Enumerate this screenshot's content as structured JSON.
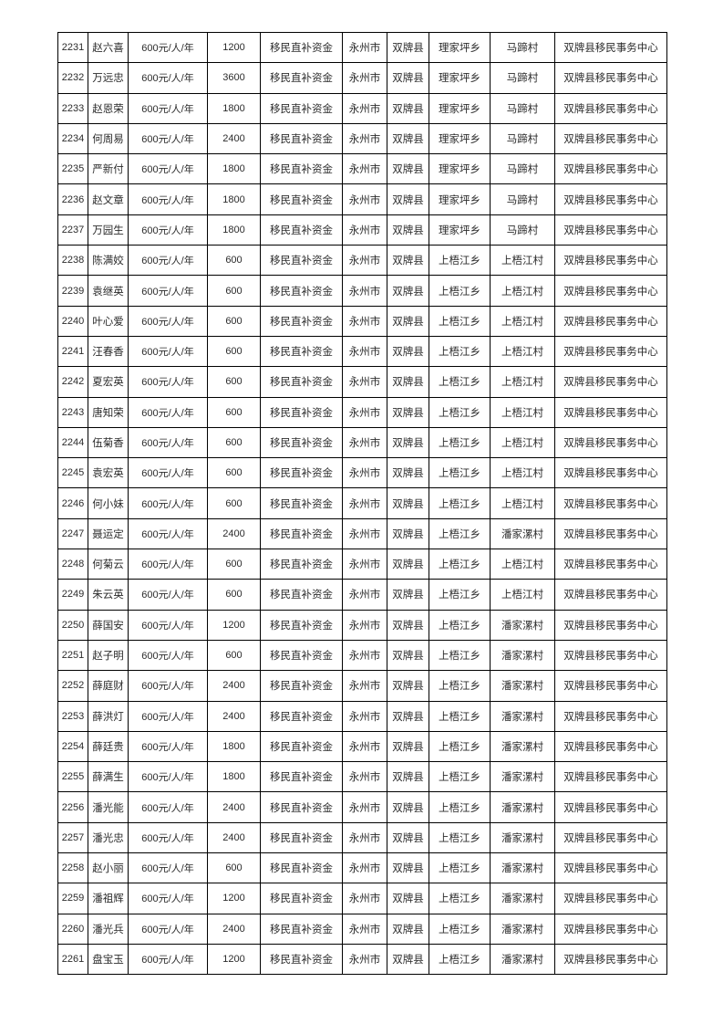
{
  "document": {
    "type": "subsidy-roster-table",
    "text_color": "#2b2b2b",
    "border_color": "#000000",
    "background_color": "#ffffff"
  },
  "table": {
    "column_semantics": [
      "serial-number",
      "person-name",
      "subsidy-standard",
      "subsidy-amount",
      "fund-type",
      "city",
      "county",
      "township",
      "village",
      "paying-agency"
    ],
    "rows": [
      [
        "2231",
        "赵六喜",
        "600元/人/年",
        "1200",
        "移民直补资金",
        "永州市",
        "双牌县",
        "理家坪乡",
        "马蹄村",
        "双牌县移民事务中心"
      ],
      [
        "2232",
        "万远忠",
        "600元/人/年",
        "3600",
        "移民直补资金",
        "永州市",
        "双牌县",
        "理家坪乡",
        "马蹄村",
        "双牌县移民事务中心"
      ],
      [
        "2233",
        "赵恩荣",
        "600元/人/年",
        "1800",
        "移民直补资金",
        "永州市",
        "双牌县",
        "理家坪乡",
        "马蹄村",
        "双牌县移民事务中心"
      ],
      [
        "2234",
        "何周易",
        "600元/人/年",
        "2400",
        "移民直补资金",
        "永州市",
        "双牌县",
        "理家坪乡",
        "马蹄村",
        "双牌县移民事务中心"
      ],
      [
        "2235",
        "严新付",
        "600元/人/年",
        "1800",
        "移民直补资金",
        "永州市",
        "双牌县",
        "理家坪乡",
        "马蹄村",
        "双牌县移民事务中心"
      ],
      [
        "2236",
        "赵文章",
        "600元/人/年",
        "1800",
        "移民直补资金",
        "永州市",
        "双牌县",
        "理家坪乡",
        "马蹄村",
        "双牌县移民事务中心"
      ],
      [
        "2237",
        "万园生",
        "600元/人/年",
        "1800",
        "移民直补资金",
        "永州市",
        "双牌县",
        "理家坪乡",
        "马蹄村",
        "双牌县移民事务中心"
      ],
      [
        "2238",
        "陈满姣",
        "600元/人/年",
        "600",
        "移民直补资金",
        "永州市",
        "双牌县",
        "上梧江乡",
        "上梧江村",
        "双牌县移民事务中心"
      ],
      [
        "2239",
        "袁继英",
        "600元/人/年",
        "600",
        "移民直补资金",
        "永州市",
        "双牌县",
        "上梧江乡",
        "上梧江村",
        "双牌县移民事务中心"
      ],
      [
        "2240",
        "叶心爱",
        "600元/人/年",
        "600",
        "移民直补资金",
        "永州市",
        "双牌县",
        "上梧江乡",
        "上梧江村",
        "双牌县移民事务中心"
      ],
      [
        "2241",
        "汪春香",
        "600元/人/年",
        "600",
        "移民直补资金",
        "永州市",
        "双牌县",
        "上梧江乡",
        "上梧江村",
        "双牌县移民事务中心"
      ],
      [
        "2242",
        "夏宏英",
        "600元/人/年",
        "600",
        "移民直补资金",
        "永州市",
        "双牌县",
        "上梧江乡",
        "上梧江村",
        "双牌县移民事务中心"
      ],
      [
        "2243",
        "唐知荣",
        "600元/人/年",
        "600",
        "移民直补资金",
        "永州市",
        "双牌县",
        "上梧江乡",
        "上梧江村",
        "双牌县移民事务中心"
      ],
      [
        "2244",
        "伍菊香",
        "600元/人/年",
        "600",
        "移民直补资金",
        "永州市",
        "双牌县",
        "上梧江乡",
        "上梧江村",
        "双牌县移民事务中心"
      ],
      [
        "2245",
        "袁宏英",
        "600元/人/年",
        "600",
        "移民直补资金",
        "永州市",
        "双牌县",
        "上梧江乡",
        "上梧江村",
        "双牌县移民事务中心"
      ],
      [
        "2246",
        "何小妹",
        "600元/人/年",
        "600",
        "移民直补资金",
        "永州市",
        "双牌县",
        "上梧江乡",
        "上梧江村",
        "双牌县移民事务中心"
      ],
      [
        "2247",
        "聂运定",
        "600元/人/年",
        "2400",
        "移民直补资金",
        "永州市",
        "双牌县",
        "上梧江乡",
        "潘家漯村",
        "双牌县移民事务中心"
      ],
      [
        "2248",
        "何菊云",
        "600元/人/年",
        "600",
        "移民直补资金",
        "永州市",
        "双牌县",
        "上梧江乡",
        "上梧江村",
        "双牌县移民事务中心"
      ],
      [
        "2249",
        "朱云英",
        "600元/人/年",
        "600",
        "移民直补资金",
        "永州市",
        "双牌县",
        "上梧江乡",
        "上梧江村",
        "双牌县移民事务中心"
      ],
      [
        "2250",
        "薛国安",
        "600元/人/年",
        "1200",
        "移民直补资金",
        "永州市",
        "双牌县",
        "上梧江乡",
        "潘家漯村",
        "双牌县移民事务中心"
      ],
      [
        "2251",
        "赵子明",
        "600元/人/年",
        "600",
        "移民直补资金",
        "永州市",
        "双牌县",
        "上梧江乡",
        "潘家漯村",
        "双牌县移民事务中心"
      ],
      [
        "2252",
        "薛庭财",
        "600元/人/年",
        "2400",
        "移民直补资金",
        "永州市",
        "双牌县",
        "上梧江乡",
        "潘家漯村",
        "双牌县移民事务中心"
      ],
      [
        "2253",
        "薛洪灯",
        "600元/人/年",
        "2400",
        "移民直补资金",
        "永州市",
        "双牌县",
        "上梧江乡",
        "潘家漯村",
        "双牌县移民事务中心"
      ],
      [
        "2254",
        "薛廷贵",
        "600元/人/年",
        "1800",
        "移民直补资金",
        "永州市",
        "双牌县",
        "上梧江乡",
        "潘家漯村",
        "双牌县移民事务中心"
      ],
      [
        "2255",
        "薛满生",
        "600元/人/年",
        "1800",
        "移民直补资金",
        "永州市",
        "双牌县",
        "上梧江乡",
        "潘家漯村",
        "双牌县移民事务中心"
      ],
      [
        "2256",
        "潘光能",
        "600元/人/年",
        "2400",
        "移民直补资金",
        "永州市",
        "双牌县",
        "上梧江乡",
        "潘家漯村",
        "双牌县移民事务中心"
      ],
      [
        "2257",
        "潘光忠",
        "600元/人/年",
        "2400",
        "移民直补资金",
        "永州市",
        "双牌县",
        "上梧江乡",
        "潘家漯村",
        "双牌县移民事务中心"
      ],
      [
        "2258",
        "赵小丽",
        "600元/人/年",
        "600",
        "移民直补资金",
        "永州市",
        "双牌县",
        "上梧江乡",
        "潘家漯村",
        "双牌县移民事务中心"
      ],
      [
        "2259",
        "潘祖辉",
        "600元/人/年",
        "1200",
        "移民直补资金",
        "永州市",
        "双牌县",
        "上梧江乡",
        "潘家漯村",
        "双牌县移民事务中心"
      ],
      [
        "2260",
        "潘光兵",
        "600元/人/年",
        "2400",
        "移民直补资金",
        "永州市",
        "双牌县",
        "上梧江乡",
        "潘家漯村",
        "双牌县移民事务中心"
      ],
      [
        "2261",
        "盘宝玉",
        "600元/人/年",
        "1200",
        "移民直补资金",
        "永州市",
        "双牌县",
        "上梧江乡",
        "潘家漯村",
        "双牌县移民事务中心"
      ]
    ]
  }
}
